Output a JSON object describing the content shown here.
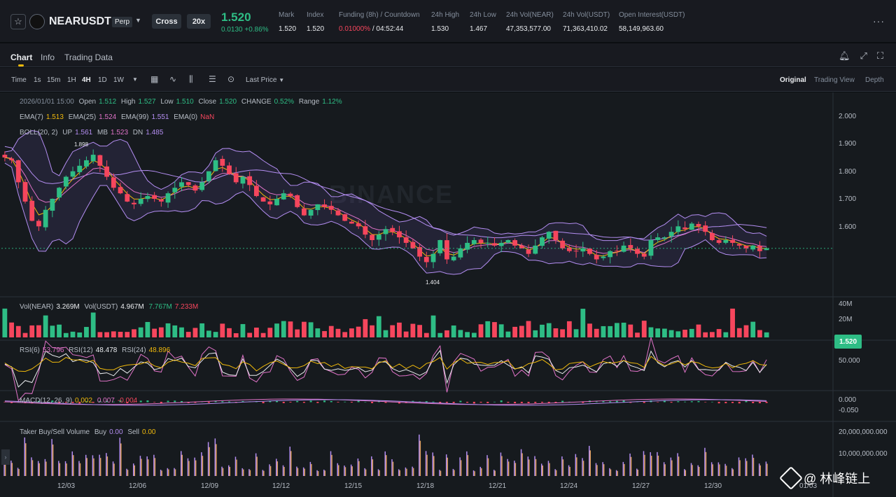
{
  "header": {
    "symbol": "NEARUSDT",
    "contract_type": "Perp",
    "margin_mode": "Cross",
    "leverage": "20x",
    "last_price": "1.520",
    "change": "0.0130 +0.86%",
    "stats": [
      {
        "label": "Mark",
        "value": "1.520"
      },
      {
        "label": "Index",
        "value": "1.520"
      },
      {
        "label": "Funding (8h) / Countdown",
        "value_a": "0.01000%",
        "value_b": " / 04:52:44"
      },
      {
        "label": "24h High",
        "value": "1.530"
      },
      {
        "label": "24h Low",
        "value": "1.467"
      },
      {
        "label": "24h Vol(NEAR)",
        "value": "47,353,577.00"
      },
      {
        "label": "24h Vol(USDT)",
        "value": "71,363,410.02"
      },
      {
        "label": "Open Interest(USDT)",
        "value": "58,149,963.60"
      }
    ]
  },
  "tabs": [
    "Chart",
    "Info",
    "Trading Data"
  ],
  "toolbar": {
    "timeframes": [
      "Time",
      "1s",
      "15m",
      "1H",
      "4H",
      "1D",
      "1W"
    ],
    "active_timeframe": "4H",
    "price_type": "Last Price",
    "views": [
      "Original",
      "Trading View",
      "Depth"
    ],
    "active_view": "Original"
  },
  "legend": {
    "ohlc": {
      "date": "2026/01/01 15:00",
      "open_label": "Open",
      "open": "1.512",
      "high_label": "High",
      "high": "1.527",
      "low_label": "Low",
      "low": "1.510",
      "close_label": "Close",
      "close": "1.520",
      "change_label": "CHANGE",
      "change": "0.52%",
      "range_label": "Range",
      "range": "1.12%"
    },
    "ema": {
      "l7": "EMA(7)",
      "v7": "1.513",
      "l25": "EMA(25)",
      "v25": "1.524",
      "l99": "EMA(99)",
      "v99": "1.551",
      "l0": "EMA(0)",
      "v0": "NaN"
    },
    "boll": {
      "label": "BOLL(20, 2)",
      "up_label": "UP",
      "up": "1.561",
      "mb_label": "MB",
      "mb": "1.523",
      "dn_label": "DN",
      "dn": "1.485"
    },
    "vol": {
      "l1": "Vol(NEAR)",
      "v1": "3.269M",
      "l2": "Vol(USDT)",
      "v2": "4.967M",
      "v3": "7.767M",
      "v4": "7.233M"
    },
    "rsi": {
      "l6": "RSI(6)",
      "v6": "53.796",
      "l12": "RSI(12)",
      "v12": "48.478",
      "l24": "RSI(24)",
      "v24": "48.896"
    },
    "macd": {
      "label": "MACD(12, 26, 9)",
      "dif": "0.002",
      "dea": "0.007",
      "macd": "-0.004"
    },
    "taker": {
      "label": "Taker Buy/Sell Volume",
      "buy_label": "Buy",
      "buy": "0.00",
      "sell_label": "Sell",
      "sell": "0.00"
    }
  },
  "watermark": "BINANCE",
  "price_axis": [
    "2.000",
    "1.900",
    "1.800",
    "1.700",
    "1.600"
  ],
  "last_price_badge": "1.520",
  "high_marker": "1.898",
  "low_marker": "1.404",
  "vol_axis": [
    "40M",
    "20M"
  ],
  "rsi_axis": [
    "50.000"
  ],
  "macd_axis": [
    "0.000",
    "-0.050"
  ],
  "taker_axis": [
    "20,000,000.000",
    "10,000,000.000"
  ],
  "dates": [
    "12/03",
    "12/06",
    "12/09",
    "12/12",
    "12/15",
    "12/18",
    "12/21",
    "12/24",
    "12/27",
    "12/30",
    "01/03"
  ],
  "overlay_watermark": "@ 林峰链上",
  "colors": {
    "up": "#2ebd85",
    "down": "#f6465d",
    "accent": "#f0b90b",
    "bg": "#161a1e",
    "ema7": "#f0b90b",
    "ema25": "#e073c8",
    "ema99": "#b48ef2"
  },
  "chart_data": {
    "type": "candlestick",
    "interval": "4H",
    "price_range": [
      1.4,
      2.0
    ],
    "close_path": [
      1.85,
      1.84,
      1.76,
      1.69,
      1.62,
      1.6,
      1.66,
      1.7,
      1.74,
      1.78,
      1.8,
      1.82,
      1.84,
      1.86,
      1.82,
      1.78,
      1.74,
      1.72,
      1.69,
      1.68,
      1.7,
      1.71,
      1.7,
      1.69,
      1.72,
      1.74,
      1.76,
      1.75,
      1.73,
      1.76,
      1.8,
      1.84,
      1.82,
      1.79,
      1.76,
      1.78,
      1.75,
      1.71,
      1.69,
      1.68,
      1.7,
      1.72,
      1.71,
      1.67,
      1.64,
      1.66,
      1.68,
      1.67,
      1.66,
      1.64,
      1.62,
      1.61,
      1.6,
      1.57,
      1.55,
      1.57,
      1.59,
      1.58,
      1.56,
      1.54,
      1.52,
      1.49,
      1.47,
      1.5,
      1.55,
      1.48,
      1.49,
      1.52,
      1.54,
      1.55,
      1.54,
      1.54,
      1.53,
      1.54,
      1.55,
      1.53,
      1.52,
      1.5,
      1.53,
      1.56,
      1.58,
      1.55,
      1.52,
      1.51,
      1.51,
      1.52,
      1.5,
      1.48,
      1.49,
      1.51,
      1.51,
      1.53,
      1.52,
      1.5,
      1.49,
      1.55,
      1.56,
      1.56,
      1.58,
      1.6,
      1.59,
      1.61,
      1.6,
      1.58,
      1.55,
      1.54,
      1.55,
      1.54,
      1.53,
      1.52,
      1.53,
      1.51,
      1.52
    ]
  }
}
